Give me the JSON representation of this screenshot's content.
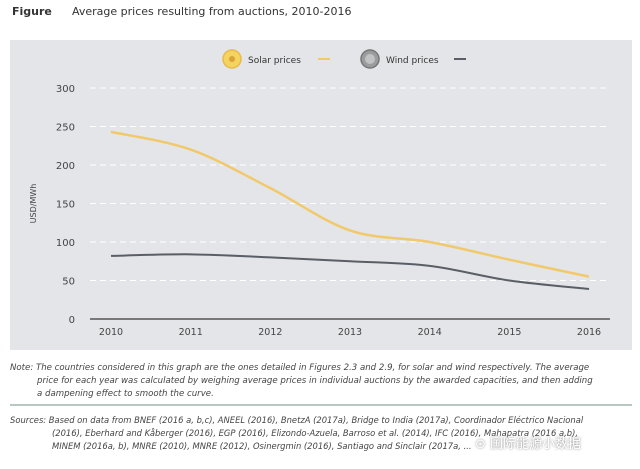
{
  "header": {
    "label": "Figure",
    "title": "Average prices resulting from auctions, 2010-2016"
  },
  "chart_data": {
    "type": "line",
    "title": "Average prices resulting from auctions, 2010-2016",
    "xlabel": "",
    "ylabel": "USD/MWh",
    "x": [
      2010,
      2011,
      2012,
      2013,
      2014,
      2015,
      2016
    ],
    "ylim": [
      0,
      300
    ],
    "yticks": [
      0,
      50,
      100,
      150,
      200,
      250,
      300
    ],
    "grid": true,
    "legend": "top-center",
    "series": [
      {
        "name": "Solar prices",
        "color": "#f2c96a",
        "values": [
          243,
          220,
          170,
          115,
          100,
          77,
          55
        ]
      },
      {
        "name": "Wind prices",
        "color": "#5a5e66",
        "values": [
          82,
          84,
          80,
          75,
          69,
          50,
          39
        ]
      }
    ]
  },
  "note": {
    "line1": "Note: The countries considered in this graph are the ones detailed in Figures 2.3 and 2.9, for solar and wind respectively. The average",
    "line2": "price for each year was calculated by weighing average prices in individual auctions by the awarded capacities, and then adding",
    "line3": "a dampening effect to smooth the curve."
  },
  "sources": {
    "line1": "Sources: Based on data from BNEF (2016 a, b,c), ANEEL (2016), BnetzA (2017a), Bridge to India (2017a), Coordinador Eléctrico Nacional",
    "line2": "(2016), Eberhard and Kåberger (2016), EGP (2016), Elizondo-Azuela, Barroso et al. (2014), IFC (2016), Mahapatra (2016 a,b),",
    "line3": "MINEM (2016a, b), MNRE (2010), MNRE (2012), Osinergmin (2016), Santiago and Sinclair (2017a, ..."
  },
  "watermark": "国际能源小数据"
}
